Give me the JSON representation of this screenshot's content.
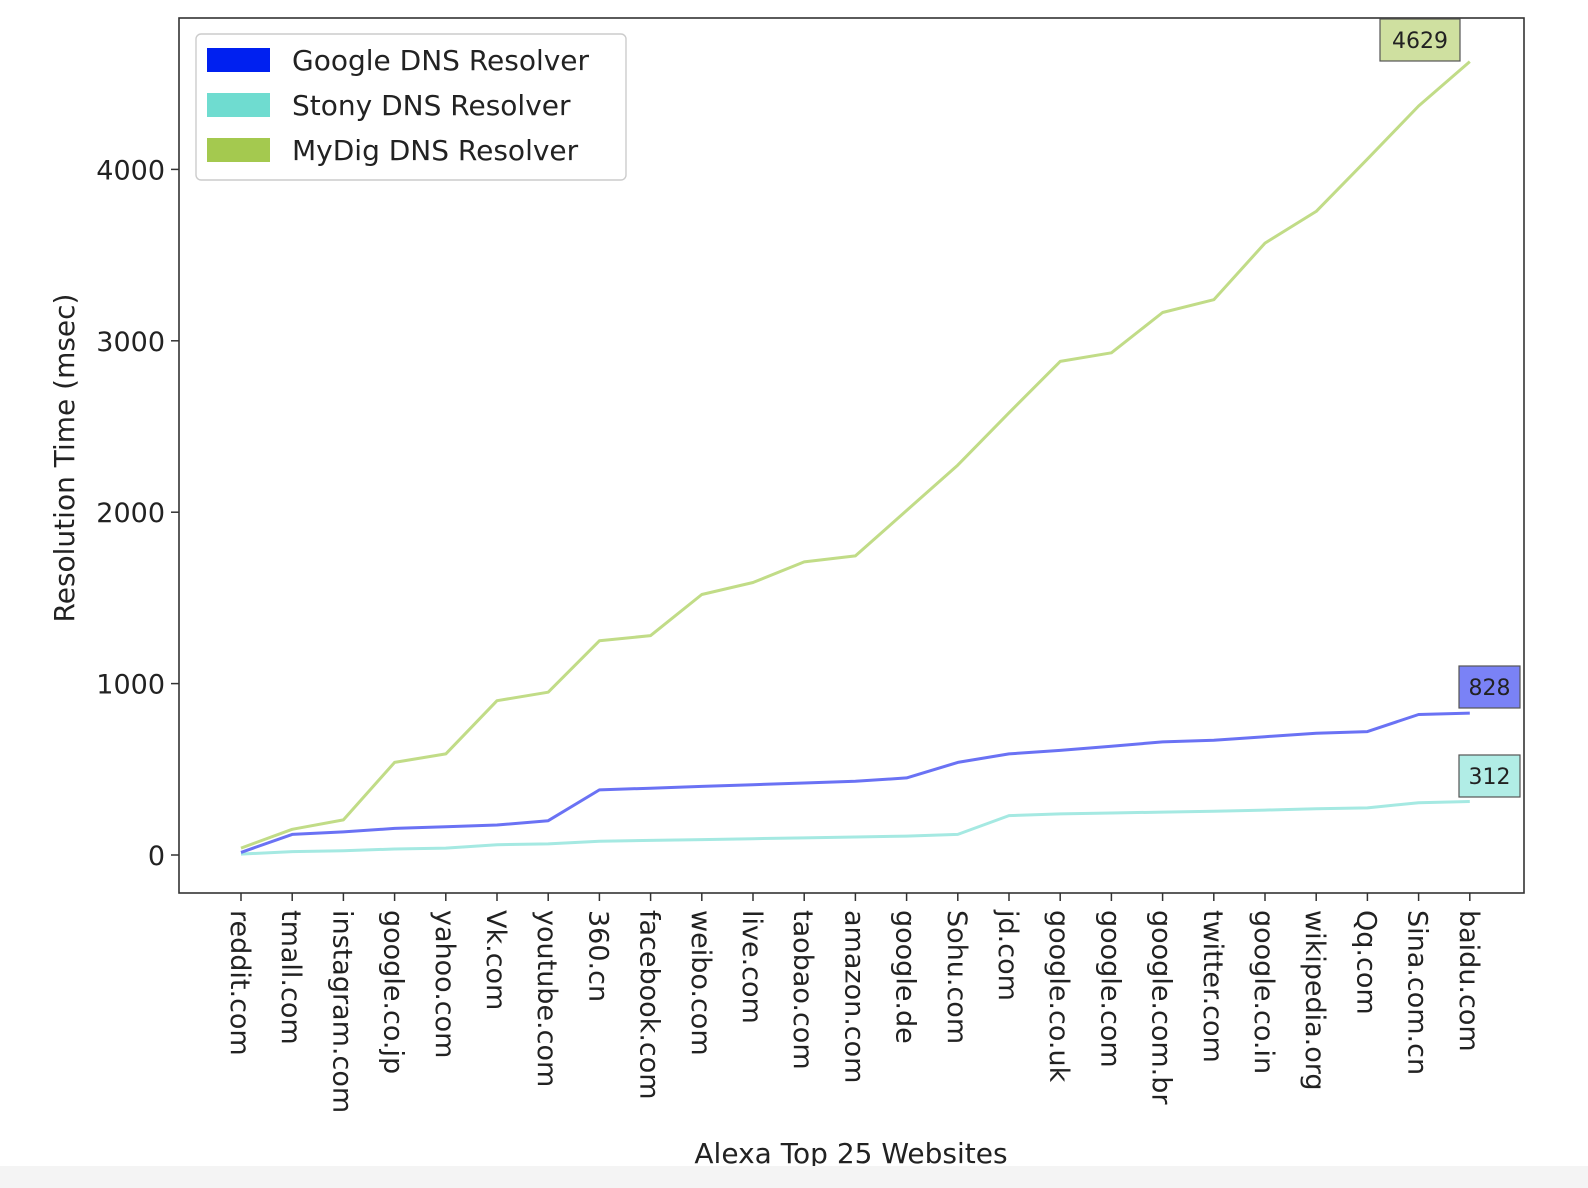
{
  "chart_data": {
    "type": "line",
    "title": "",
    "xlabel": "Alexa Top 25 Websites",
    "ylabel": "Resolution Time (msec)",
    "ylim": [
      -220,
      4880
    ],
    "yticks": [
      0,
      1000,
      2000,
      3000,
      4000
    ],
    "grid": false,
    "legend_position": "top-left",
    "categories": [
      "reddit.com",
      "tmall.com",
      "instagram.com",
      "google.co.jp",
      "yahoo.com",
      "Vk.com",
      "youtube.com",
      "360.cn",
      "facebook.com",
      "weibo.com",
      "live.com",
      "taobao.com",
      "amazon.com",
      "google.de",
      "Sohu.com",
      "jd.com",
      "google.co.uk",
      "google.com",
      "google.com.br",
      "twitter.com",
      "google.co.in",
      "wikipedia.org",
      "Qq.com",
      "Sina.com.cn",
      "baidu.com"
    ],
    "series": [
      {
        "name": "Google DNS Resolver",
        "color": "#0020f0",
        "line_color": "#6a72f4",
        "values": [
          15,
          120,
          135,
          155,
          165,
          175,
          200,
          380,
          390,
          400,
          410,
          420,
          430,
          450,
          540,
          590,
          610,
          635,
          660,
          670,
          690,
          710,
          720,
          820,
          828
        ]
      },
      {
        "name": "Stony DNS Resolver",
        "color": "#6fdcd0",
        "line_color": "#a5e9e2",
        "values": [
          5,
          20,
          25,
          35,
          40,
          60,
          65,
          80,
          85,
          90,
          95,
          100,
          105,
          110,
          120,
          230,
          240,
          245,
          250,
          255,
          262,
          270,
          275,
          305,
          312
        ]
      },
      {
        "name": "MyDig DNS Resolver",
        "color": "#a4c94f",
        "line_color": "#c1dc87",
        "values": [
          40,
          150,
          205,
          540,
          590,
          900,
          950,
          1250,
          1280,
          1520,
          1590,
          1710,
          1745,
          2010,
          2275,
          2580,
          2880,
          2930,
          3165,
          3240,
          3570,
          3755,
          4060,
          4370,
          4629
        ]
      }
    ],
    "annotations": [
      {
        "series": "MyDig DNS Resolver",
        "label": "4629",
        "bg": "#cfe0a0"
      },
      {
        "series": "Google DNS Resolver",
        "label": "828",
        "bg": "#7a82f6"
      },
      {
        "series": "Stony DNS Resolver",
        "label": "312",
        "bg": "#b1ede6"
      }
    ]
  }
}
